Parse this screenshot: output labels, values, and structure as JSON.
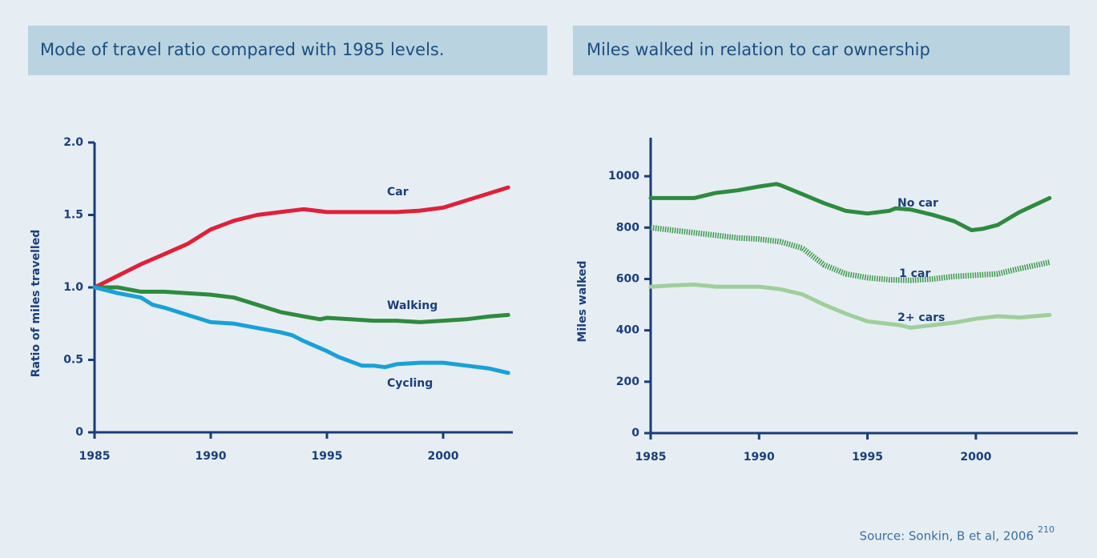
{
  "chart_data": [
    {
      "type": "line",
      "title": "Mode of travel ratio compared with 1985 levels.",
      "ylabel": "Ratio of miles travelled",
      "xlim": [
        1985,
        2003
      ],
      "xticks": [
        1985,
        1990,
        1995,
        2000
      ],
      "ylim": [
        0,
        2
      ],
      "yticks": [
        0,
        0.5,
        {
          "value": 1,
          "label": "1.0"
        },
        1.5,
        {
          "value": 2,
          "label": "2.0"
        }
      ],
      "series": [
        {
          "name": "Car",
          "color": "#e0203a",
          "style": "solid",
          "x": [
            1985,
            1986,
            1987,
            1988,
            1989,
            1990,
            1991,
            1992,
            1993,
            1994,
            1995,
            1996,
            1997,
            1998,
            1999,
            2000,
            2001,
            2002,
            2002.8
          ],
          "values": [
            1.0,
            1.08,
            1.16,
            1.23,
            1.3,
            1.4,
            1.46,
            1.5,
            1.52,
            1.54,
            1.52,
            1.52,
            1.52,
            1.52,
            1.53,
            1.55,
            1.6,
            1.65,
            1.69
          ]
        },
        {
          "name": "Walking",
          "color": "#2e8b3e",
          "style": "solid",
          "x": [
            1985,
            1986,
            1987,
            1988,
            1989,
            1990,
            1991,
            1992,
            1993,
            1994,
            1994.7,
            1995,
            1996,
            1997,
            1998,
            1999,
            2000,
            2001,
            2002,
            2002.8
          ],
          "values": [
            1.0,
            1.0,
            0.97,
            0.97,
            0.96,
            0.95,
            0.93,
            0.88,
            0.83,
            0.8,
            0.78,
            0.79,
            0.78,
            0.77,
            0.77,
            0.76,
            0.77,
            0.78,
            0.8,
            0.81
          ]
        },
        {
          "name": "Cycling",
          "color": "#1aa0d8",
          "style": "solid",
          "x": [
            1985,
            1986,
            1987,
            1987.5,
            1988,
            1989,
            1990,
            1991,
            1992,
            1993,
            1993.5,
            1994,
            1995,
            1995.5,
            1996,
            1996.5,
            1997,
            1997.5,
            1998,
            1999,
            2000,
            2001,
            2002,
            2002.8
          ],
          "values": [
            1.0,
            0.96,
            0.93,
            0.88,
            0.86,
            0.81,
            0.76,
            0.75,
            0.72,
            0.69,
            0.67,
            0.63,
            0.56,
            0.52,
            0.49,
            0.46,
            0.46,
            0.45,
            0.47,
            0.48,
            0.48,
            0.46,
            0.44,
            0.41
          ]
        }
      ]
    },
    {
      "type": "line",
      "title": "Miles walked in relation to car ownership",
      "ylabel": "Miles walked",
      "xlim": [
        1985,
        2004.7
      ],
      "xticks": [
        1985,
        1990,
        1995,
        2000
      ],
      "ylim": [
        0,
        1150
      ],
      "yticks": [
        0,
        200,
        400,
        600,
        800,
        1000
      ],
      "series": [
        {
          "name": "No car",
          "color": "#2e8b3e",
          "style": "solid",
          "x": [
            1985,
            1986,
            1987,
            1988,
            1989,
            1990,
            1990.8,
            1991,
            1992,
            1993,
            1994,
            1995,
            1996,
            1996.3,
            1997,
            1998,
            1999,
            1999.8,
            2000.3,
            2001,
            2002,
            2003.4
          ],
          "values": [
            915,
            915,
            915,
            935,
            945,
            960,
            970,
            965,
            930,
            895,
            865,
            855,
            865,
            875,
            870,
            850,
            825,
            790,
            795,
            810,
            860,
            915
          ]
        },
        {
          "name": "1 car",
          "color": "#3c9a4a",
          "style": "dotted",
          "x": [
            1985,
            1986,
            1987,
            1988,
            1989,
            1990,
            1991,
            1992,
            1993,
            1994,
            1995,
            1996,
            1997,
            1998,
            1999,
            2000,
            2001,
            2002,
            2003.4
          ],
          "values": [
            800,
            790,
            780,
            770,
            760,
            755,
            745,
            720,
            655,
            620,
            605,
            597,
            595,
            600,
            610,
            615,
            620,
            640,
            665
          ]
        },
        {
          "name": "2+ cars",
          "color": "#9fcf9a",
          "style": "solid",
          "x": [
            1985,
            1986,
            1987,
            1988,
            1989,
            1990,
            1991,
            1992,
            1993,
            1994,
            1995,
            1996,
            1996.5,
            1997,
            1998,
            1999,
            2000,
            2001,
            2002,
            2003.4
          ],
          "values": [
            570,
            575,
            578,
            570,
            570,
            570,
            560,
            540,
            500,
            465,
            435,
            425,
            420,
            410,
            420,
            430,
            445,
            455,
            450,
            460
          ]
        }
      ]
    }
  ],
  "source": "Source: Sonkin, B et al, 2006",
  "source_ref": "210"
}
